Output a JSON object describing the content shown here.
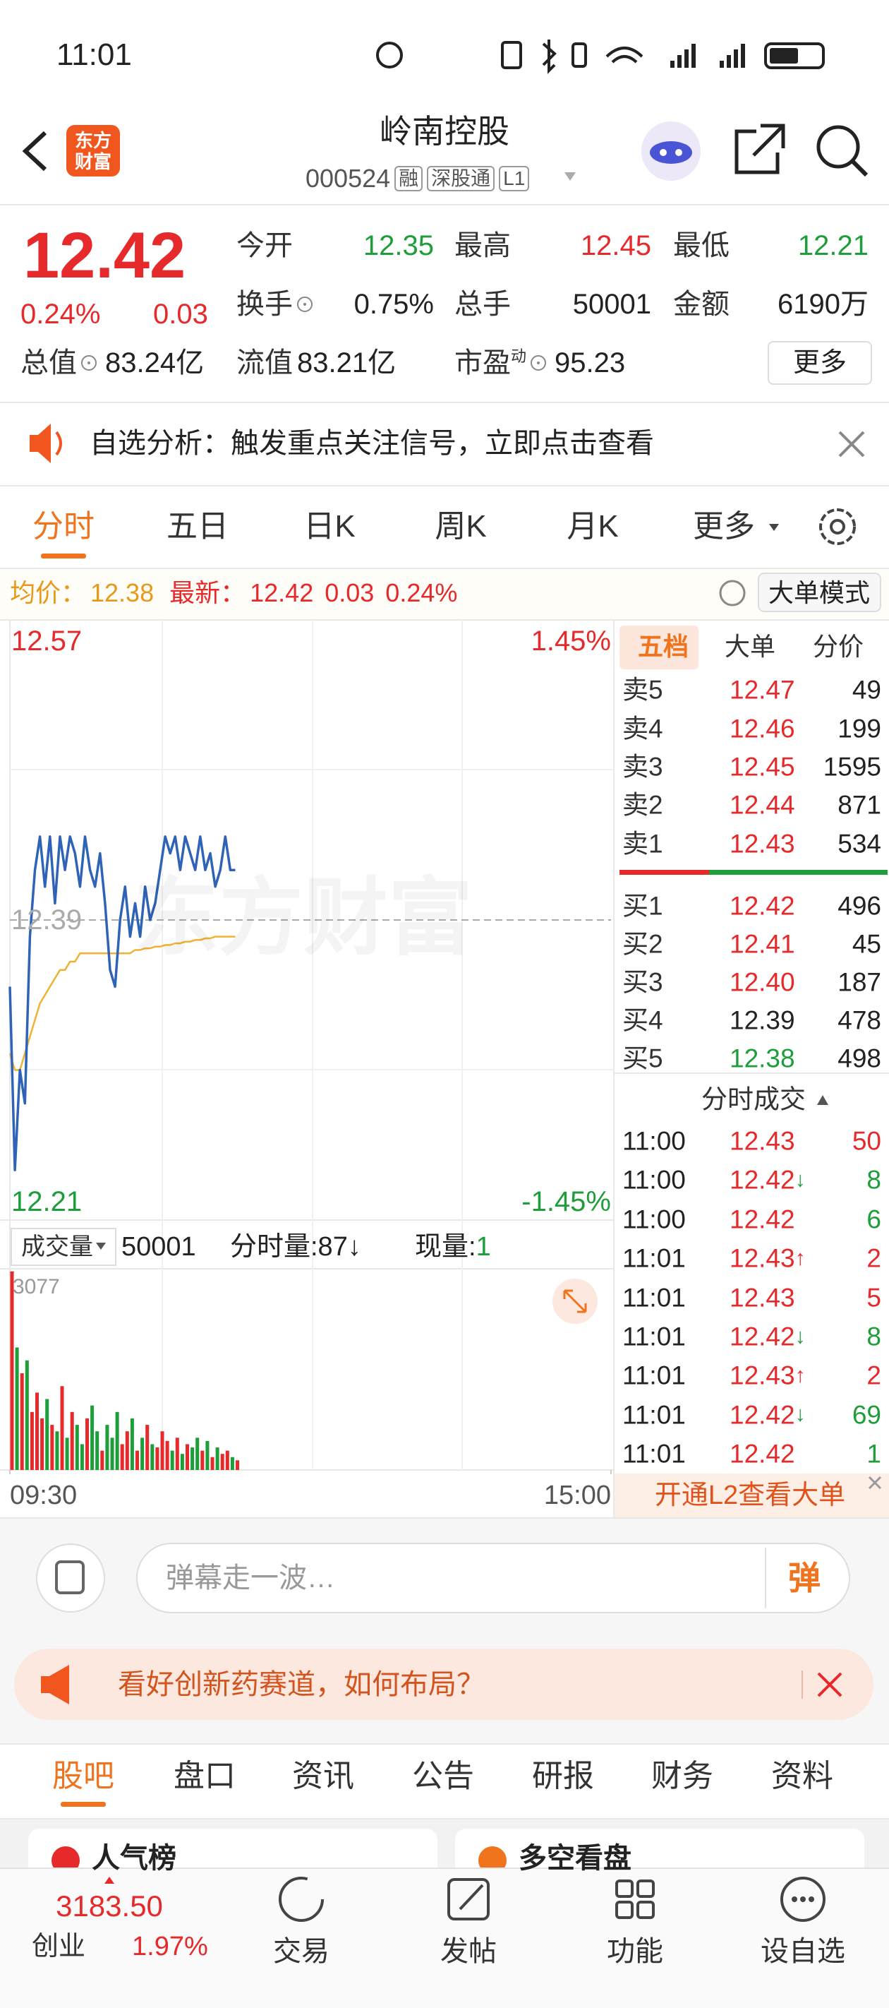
{
  "status_bar": {
    "time": "11:01"
  },
  "header": {
    "logo_lines": [
      "东方",
      "财富"
    ],
    "title": "岭南控股",
    "code": "000524",
    "tags": [
      "融",
      "深股通",
      "L1"
    ]
  },
  "quote": {
    "price": "12.42",
    "change_pct": "0.24%",
    "change": "0.03",
    "fields": [
      {
        "label": "今开",
        "value": "12.35",
        "color": "#1e9e3a"
      },
      {
        "label": "最高",
        "value": "12.45",
        "color": "#e6292b"
      },
      {
        "label": "最低",
        "value": "12.21",
        "color": "#1e9e3a"
      },
      {
        "label": "换手",
        "value": "0.75%",
        "color": "#222222"
      },
      {
        "label": "总手",
        "value": "50001",
        "color": "#222222"
      },
      {
        "label": "金额",
        "value": "6190万",
        "color": "#222222"
      },
      {
        "label": "总值",
        "value": "83.24亿",
        "color": "#222222"
      },
      {
        "label": "流值",
        "value": "83.21亿",
        "color": "#222222"
      },
      {
        "label": "市盈",
        "sup": "动",
        "value": "95.23",
        "color": "#222222"
      }
    ],
    "more": "更多"
  },
  "notice": {
    "text": "自选分析：触发重点关注信号，立即点击查看"
  },
  "period_tabs": {
    "items": [
      "分时",
      "五日",
      "日K",
      "周K",
      "月K",
      "更多"
    ],
    "active": 0
  },
  "info_line": {
    "avg_label": "均价：",
    "avg": "12.38",
    "last_label": "最新：",
    "last": "12.42",
    "change": "0.03",
    "change_pct": "0.24%",
    "big_order_mode": "大单模式"
  },
  "chart_watermark": "东方财富",
  "chart_data": [
    {
      "type": "line",
      "x": [
        0,
        2,
        4,
        6,
        8,
        10,
        12,
        14,
        16,
        18,
        20,
        22,
        24,
        26,
        28,
        30,
        32,
        34,
        36,
        38,
        40,
        42,
        44,
        46,
        48,
        50,
        52,
        54,
        56,
        58,
        60,
        62,
        64,
        66,
        68,
        70,
        72,
        74,
        76,
        78,
        80,
        82,
        84,
        86,
        88,
        90
      ],
      "xlim": [
        0,
        240
      ],
      "xticks": [
        {
          "value": 0,
          "label": "09:30"
        },
        {
          "value": 240,
          "label": "15:00"
        }
      ],
      "ylim": [
        12.21,
        12.57
      ],
      "yticks": [
        12.21,
        12.39,
        12.57
      ],
      "y2lim": [
        -1.45,
        1.45
      ],
      "y2ticks": [
        {
          "value": -1.45,
          "label": "-1.45%"
        },
        {
          "value": 1.45,
          "label": "1.45%"
        }
      ],
      "series": [
        {
          "color": "#2f63b8",
          "values": [
            12.35,
            12.24,
            12.3,
            12.28,
            12.38,
            12.42,
            12.44,
            12.41,
            12.44,
            12.4,
            12.44,
            12.42,
            12.44,
            12.43,
            12.41,
            12.44,
            12.42,
            12.41,
            12.43,
            12.4,
            12.36,
            12.35,
            12.39,
            12.41,
            12.38,
            12.4,
            12.38,
            12.41,
            12.39,
            12.4,
            12.42,
            12.44,
            12.43,
            12.44,
            12.42,
            12.44,
            12.43,
            12.42,
            12.44,
            12.42,
            12.43,
            12.41,
            12.42,
            12.44,
            12.42,
            12.42
          ]
        },
        {
          "color": "#f0b232",
          "values": [
            12.31,
            12.3,
            12.3,
            12.31,
            12.32,
            12.33,
            12.34,
            12.345,
            12.35,
            12.355,
            12.36,
            12.36,
            12.365,
            12.365,
            12.37,
            12.37,
            12.37,
            12.37,
            12.37,
            12.37,
            12.37,
            12.37,
            12.37,
            12.37,
            12.37,
            12.372,
            12.372,
            12.373,
            12.373,
            12.374,
            12.374,
            12.375,
            12.375,
            12.376,
            12.376,
            12.377,
            12.377,
            12.378,
            12.378,
            12.379,
            12.379,
            12.38,
            12.38,
            12.38,
            12.38,
            12.38
          ]
        }
      ]
    },
    {
      "type": "bar",
      "x": [
        0,
        2,
        4,
        6,
        8,
        10,
        12,
        14,
        16,
        18,
        20,
        22,
        24,
        26,
        28,
        30,
        32,
        34,
        36,
        38,
        40,
        42,
        44,
        46,
        48,
        50,
        52,
        54,
        56,
        58,
        60,
        62,
        64,
        66,
        68,
        70,
        72,
        74,
        76,
        78,
        80,
        82,
        84,
        86,
        88,
        90
      ],
      "xlim": [
        0,
        240
      ],
      "values": [
        3077,
        1900,
        1500,
        1700,
        900,
        1200,
        800,
        1100,
        700,
        600,
        1300,
        500,
        900,
        700,
        400,
        800,
        1000,
        600,
        300,
        700,
        500,
        900,
        400,
        600,
        800,
        300,
        500,
        700,
        400,
        350,
        600,
        450,
        300,
        500,
        250,
        400,
        350,
        500,
        300,
        450,
        200,
        350,
        250,
        300,
        200,
        150
      ],
      "up_color": "#e6292b",
      "down_color": "#1e9e3a",
      "ylim": [
        0,
        3077
      ],
      "yticks": [
        3077
      ]
    }
  ],
  "volume_header": {
    "selector": "成交量",
    "total": "50001",
    "minute_volume": "分时量:87↓",
    "current_label": "现量:",
    "current": "1"
  },
  "order_book": {
    "tabs": [
      "五档",
      "大单",
      "分价"
    ],
    "sell": [
      {
        "label": "卖5",
        "price": "12.47",
        "volume": "49",
        "color": "#e6292b"
      },
      {
        "label": "卖4",
        "price": "12.46",
        "volume": "199",
        "color": "#e6292b"
      },
      {
        "label": "卖3",
        "price": "12.45",
        "volume": "1595",
        "color": "#e6292b"
      },
      {
        "label": "卖2",
        "price": "12.44",
        "volume": "871",
        "color": "#e6292b"
      },
      {
        "label": "卖1",
        "price": "12.43",
        "volume": "534",
        "color": "#e6292b"
      }
    ],
    "buy": [
      {
        "label": "买1",
        "price": "12.42",
        "volume": "496",
        "color": "#e6292b"
      },
      {
        "label": "买2",
        "price": "12.41",
        "volume": "45",
        "color": "#e6292b"
      },
      {
        "label": "买3",
        "price": "12.40",
        "volume": "187",
        "color": "#e6292b"
      },
      {
        "label": "买4",
        "price": "12.39",
        "volume": "478",
        "color": "#222222"
      },
      {
        "label": "买5",
        "price": "12.38",
        "volume": "498",
        "color": "#1e9e3a"
      }
    ]
  },
  "trades": {
    "title": "分时成交",
    "rows": [
      {
        "time": "11:00",
        "price": "12.43",
        "volume": "50",
        "color": "#e6292b"
      },
      {
        "time": "11:00",
        "price": "12.42",
        "arrow": "↓",
        "volume": "8",
        "color": "#1e9e3a"
      },
      {
        "time": "11:00",
        "price": "12.42",
        "volume": "6",
        "color": "#1e9e3a"
      },
      {
        "time": "11:01",
        "price": "12.43",
        "arrow": "↑",
        "volume": "2",
        "color": "#e6292b"
      },
      {
        "time": "11:01",
        "price": "12.43",
        "volume": "5",
        "color": "#e6292b"
      },
      {
        "time": "11:01",
        "price": "12.42",
        "arrow": "↓",
        "volume": "8",
        "color": "#1e9e3a"
      },
      {
        "time": "11:01",
        "price": "12.43",
        "arrow": "↑",
        "volume": "2",
        "color": "#e6292b"
      },
      {
        "time": "11:01",
        "price": "12.42",
        "arrow": "↓",
        "volume": "69",
        "color": "#1e9e3a"
      },
      {
        "time": "11:01",
        "price": "12.42",
        "volume": "1",
        "color": "#1e9e3a"
      }
    ]
  },
  "l2_banner": "开通L2查看大单",
  "comment": {
    "placeholder": "弹幕走一波…",
    "button": "弹"
  },
  "promo": "看好创新药赛道，如何布局？",
  "section_tabs": {
    "items": [
      "股吧",
      "盘口",
      "资讯",
      "公告",
      "研报",
      "财务",
      "资料"
    ],
    "active": 0
  },
  "cards": [
    "人气榜",
    "多空看盘"
  ],
  "bottom_nav": {
    "index": {
      "value": "3183.50",
      "name": "创业",
      "change": "1.97%"
    },
    "items": [
      "交易",
      "发帖",
      "功能",
      "设自选"
    ]
  }
}
